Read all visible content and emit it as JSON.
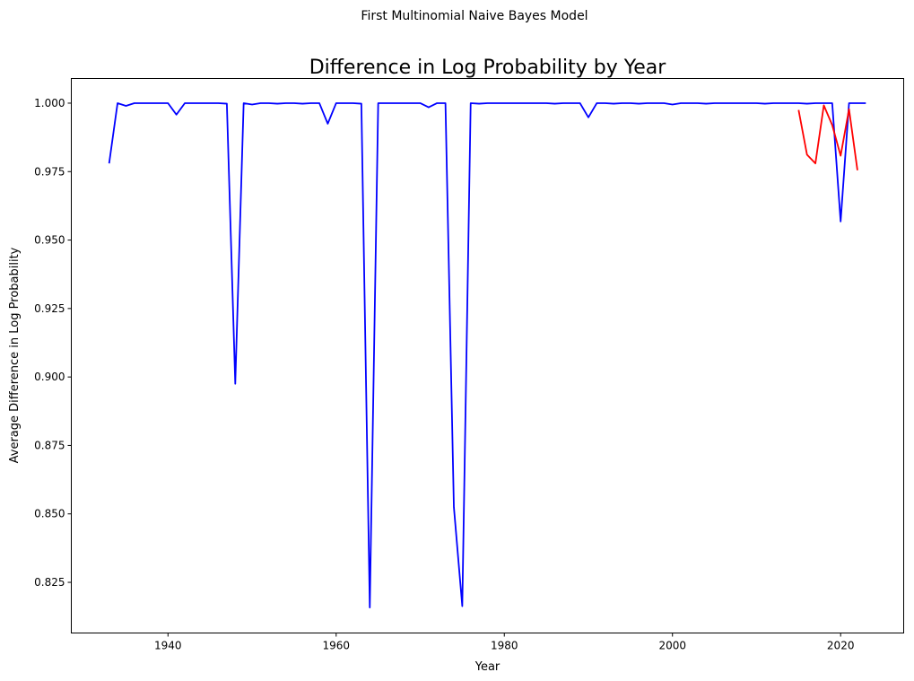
{
  "chart_data": {
    "type": "line",
    "suptitle": "First Multinomial Naive Bayes Model",
    "title": "Difference in Log Probability by Year",
    "xlabel": "Year",
    "ylabel": "Average Difference in Log Probability",
    "xlim": [
      1928.5,
      2027.5
    ],
    "ylim": [
      0.8065,
      1.009
    ],
    "xticks": [
      1940,
      1960,
      1980,
      2000,
      2020
    ],
    "yticks": [
      0.825,
      0.85,
      0.875,
      0.9,
      0.925,
      0.95,
      0.975,
      1.0
    ],
    "ytick_labels": [
      "0.825",
      "0.850",
      "0.875",
      "0.900",
      "0.925",
      "0.950",
      "0.975",
      "1.000"
    ],
    "grid": false,
    "series": [
      {
        "color": "#0000ff",
        "x": [
          1933,
          1934,
          1935,
          1936,
          1937,
          1938,
          1939,
          1940,
          1941,
          1942,
          1943,
          1944,
          1945,
          1946,
          1947,
          1948,
          1949,
          1950,
          1951,
          1952,
          1953,
          1954,
          1955,
          1956,
          1957,
          1958,
          1959,
          1960,
          1961,
          1962,
          1963,
          1964,
          1965,
          1966,
          1967,
          1968,
          1969,
          1970,
          1971,
          1972,
          1973,
          1974,
          1975,
          1976,
          1977,
          1978,
          1979,
          1980,
          1981,
          1982,
          1983,
          1984,
          1985,
          1986,
          1987,
          1988,
          1989,
          1990,
          1991,
          1992,
          1993,
          1994,
          1995,
          1996,
          1997,
          1998,
          1999,
          2000,
          2001,
          2002,
          2003,
          2004,
          2005,
          2006,
          2007,
          2008,
          2009,
          2010,
          2011,
          2012,
          2013,
          2014,
          2015,
          2016,
          2017,
          2018,
          2019,
          2020,
          2021,
          2022,
          2023
        ],
        "y": [
          0.978,
          1.0,
          0.999,
          1.0,
          1.0,
          1.0,
          1.0,
          1.0,
          0.9958,
          1.0,
          1.0,
          1.0,
          1.0,
          1.0,
          0.9998,
          0.8975,
          1.0,
          0.9995,
          1.0,
          1.0,
          0.9998,
          1.0,
          1.0,
          0.9998,
          1.0,
          1.0,
          0.9925,
          1.0,
          1.0,
          1.0,
          0.9998,
          0.8158,
          1.0,
          1.0,
          1.0,
          1.0,
          1.0,
          1.0,
          0.9985,
          1.0,
          1.0,
          0.8525,
          0.8163,
          1.0,
          0.9998,
          1.0,
          1.0,
          1.0,
          1.0,
          1.0,
          1.0,
          1.0,
          1.0,
          0.9998,
          1.0,
          1.0,
          1.0,
          0.9948,
          1.0,
          1.0,
          0.9998,
          1.0,
          1.0,
          0.9998,
          1.0,
          1.0,
          1.0,
          0.9995,
          1.0,
          1.0,
          1.0,
          0.9998,
          1.0,
          1.0,
          1.0,
          1.0,
          1.0,
          1.0,
          0.9998,
          1.0,
          1.0,
          1.0,
          1.0,
          0.9998,
          1.0,
          1.0,
          1.0,
          0.9568,
          1.0,
          1.0,
          1.0
        ]
      },
      {
        "color": "#ff0000",
        "x": [
          2015,
          2016,
          2017,
          2018,
          2019,
          2020,
          2021,
          2022
        ],
        "y": [
          0.9975,
          0.9812,
          0.978,
          0.9992,
          0.992,
          0.9808,
          0.9978,
          0.9755
        ]
      }
    ]
  }
}
